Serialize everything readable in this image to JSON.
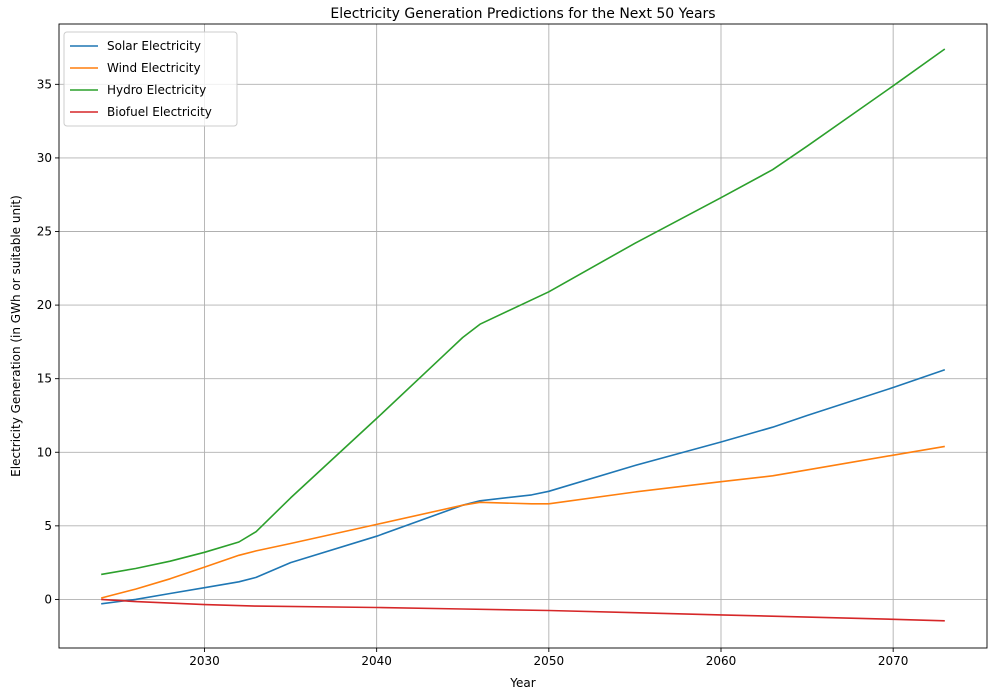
{
  "chart_data": {
    "type": "line",
    "title": "Electricity Generation Predictions for the Next 50 Years",
    "xlabel": "Year",
    "ylabel": "Electricity Generation (in GWh or suitable unit)",
    "xlim": [
      2021.55,
      2075.45
    ],
    "ylim": [
      -3.3,
      39.1
    ],
    "xticks": [
      2030,
      2040,
      2050,
      2060,
      2070
    ],
    "yticks": [
      0,
      5,
      10,
      15,
      20,
      25,
      30,
      35
    ],
    "grid": true,
    "legend_position": "top-left",
    "series": [
      {
        "name": "Solar Electricity",
        "color": "#1f77b4",
        "x": [
          2024,
          2026,
          2028,
          2030,
          2032,
          2033,
          2035,
          2040,
          2045,
          2046,
          2049,
          2050,
          2055,
          2060,
          2063,
          2065,
          2070,
          2073
        ],
        "y": [
          -0.3,
          0.0,
          0.4,
          0.8,
          1.2,
          1.5,
          2.5,
          4.3,
          6.4,
          6.7,
          7.1,
          7.35,
          9.1,
          10.7,
          11.7,
          12.5,
          14.4,
          15.6
        ]
      },
      {
        "name": "Wind Electricity",
        "color": "#ff7f0e",
        "x": [
          2024,
          2026,
          2028,
          2030,
          2032,
          2033,
          2035,
          2040,
          2045,
          2046,
          2049,
          2050,
          2055,
          2060,
          2063,
          2065,
          2070,
          2073
        ],
        "y": [
          0.1,
          0.7,
          1.4,
          2.2,
          3.0,
          3.3,
          3.8,
          5.1,
          6.4,
          6.6,
          6.5,
          6.5,
          7.3,
          8.0,
          8.4,
          8.8,
          9.8,
          10.4
        ]
      },
      {
        "name": "Hydro Electricity",
        "color": "#2ca02c",
        "x": [
          2024,
          2026,
          2028,
          2030,
          2032,
          2033,
          2035,
          2040,
          2044,
          2045,
          2046,
          2050,
          2055,
          2060,
          2063,
          2065,
          2070,
          2073
        ],
        "y": [
          1.7,
          2.1,
          2.6,
          3.2,
          3.9,
          4.6,
          6.9,
          12.3,
          16.7,
          17.8,
          18.7,
          20.9,
          24.2,
          27.3,
          29.2,
          30.8,
          34.9,
          37.4
        ]
      },
      {
        "name": "Biofuel Electricity",
        "color": "#d62728",
        "x": [
          2024,
          2026,
          2028,
          2030,
          2033,
          2040,
          2045,
          2050,
          2055,
          2060,
          2065,
          2070,
          2073
        ],
        "y": [
          0.0,
          -0.15,
          -0.25,
          -0.35,
          -0.45,
          -0.55,
          -0.65,
          -0.75,
          -0.9,
          -1.05,
          -1.2,
          -1.35,
          -1.45
        ]
      }
    ]
  }
}
